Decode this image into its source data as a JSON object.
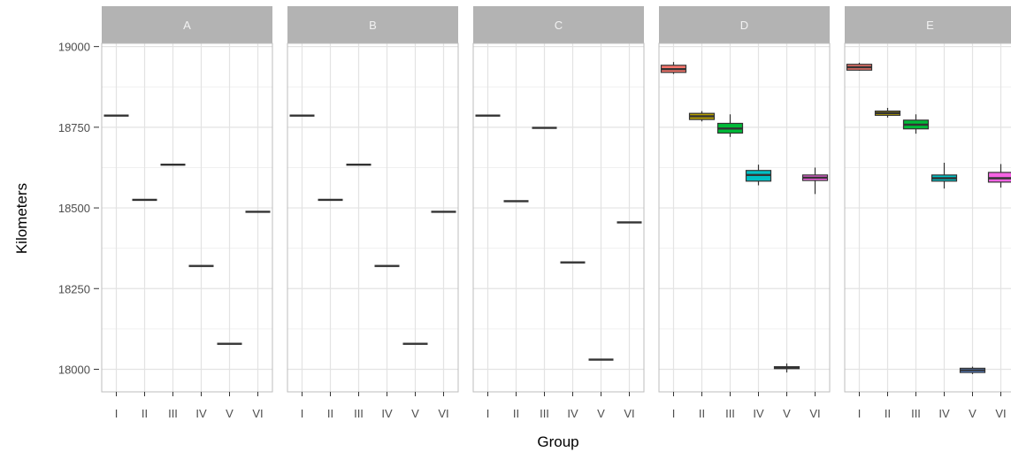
{
  "chart_data": {
    "type": "box",
    "facets": [
      "A",
      "B",
      "C",
      "D",
      "E"
    ],
    "categories": [
      "I",
      "II",
      "III",
      "IV",
      "V",
      "VI"
    ],
    "xlabel": "Group",
    "ylabel": "Kilometers",
    "ylim": [
      17930,
      19010
    ],
    "yticks": [
      18000,
      18250,
      18500,
      18750,
      19000
    ],
    "grid": true,
    "colors": {
      "I": "#F8766D",
      "II": "#B79F00",
      "III": "#00BA38",
      "IV": "#00BFC4",
      "V": "#619CFF",
      "VI": "#F564E3"
    },
    "panels": [
      {
        "facet": "A",
        "boxes": [
          {
            "group": "I",
            "min": 18786,
            "q1": 18786,
            "median": 18786,
            "q3": 18786,
            "max": 18786
          },
          {
            "group": "II",
            "min": 18525,
            "q1": 18525,
            "median": 18525,
            "q3": 18525,
            "max": 18525
          },
          {
            "group": "III",
            "min": 18634,
            "q1": 18634,
            "median": 18634,
            "q3": 18634,
            "max": 18634
          },
          {
            "group": "IV",
            "min": 18320,
            "q1": 18320,
            "median": 18320,
            "q3": 18320,
            "max": 18320
          },
          {
            "group": "V",
            "min": 18079,
            "q1": 18079,
            "median": 18079,
            "q3": 18079,
            "max": 18079
          },
          {
            "group": "VI",
            "min": 18488,
            "q1": 18488,
            "median": 18488,
            "q3": 18488,
            "max": 18488
          }
        ]
      },
      {
        "facet": "B",
        "boxes": [
          {
            "group": "I",
            "min": 18786,
            "q1": 18786,
            "median": 18786,
            "q3": 18786,
            "max": 18786
          },
          {
            "group": "II",
            "min": 18525,
            "q1": 18525,
            "median": 18525,
            "q3": 18525,
            "max": 18525
          },
          {
            "group": "III",
            "min": 18634,
            "q1": 18634,
            "median": 18634,
            "q3": 18634,
            "max": 18634
          },
          {
            "group": "IV",
            "min": 18320,
            "q1": 18320,
            "median": 18320,
            "q3": 18320,
            "max": 18320
          },
          {
            "group": "V",
            "min": 18079,
            "q1": 18079,
            "median": 18079,
            "q3": 18079,
            "max": 18079
          },
          {
            "group": "VI",
            "min": 18488,
            "q1": 18488,
            "median": 18488,
            "q3": 18488,
            "max": 18488
          }
        ]
      },
      {
        "facet": "C",
        "boxes": [
          {
            "group": "I",
            "min": 18786,
            "q1": 18786,
            "median": 18786,
            "q3": 18786,
            "max": 18786
          },
          {
            "group": "II",
            "min": 18521,
            "q1": 18521,
            "median": 18521,
            "q3": 18521,
            "max": 18521
          },
          {
            "group": "III",
            "min": 18748,
            "q1": 18748,
            "median": 18748,
            "q3": 18748,
            "max": 18748
          },
          {
            "group": "IV",
            "min": 18331,
            "q1": 18331,
            "median": 18331,
            "q3": 18331,
            "max": 18331
          },
          {
            "group": "V",
            "min": 18030,
            "q1": 18030,
            "median": 18030,
            "q3": 18030,
            "max": 18030
          },
          {
            "group": "VI",
            "min": 18455,
            "q1": 18455,
            "median": 18455,
            "q3": 18455,
            "max": 18455
          }
        ]
      },
      {
        "facet": "D",
        "boxes": [
          {
            "group": "I",
            "min": 18915,
            "q1": 18920,
            "median": 18930,
            "q3": 18942,
            "max": 18952
          },
          {
            "group": "II",
            "min": 18768,
            "q1": 18774,
            "median": 18784,
            "q3": 18793,
            "max": 18800
          },
          {
            "group": "III",
            "min": 18720,
            "q1": 18732,
            "median": 18746,
            "q3": 18762,
            "max": 18790
          },
          {
            "group": "IV",
            "min": 18570,
            "q1": 18583,
            "median": 18602,
            "q3": 18616,
            "max": 18634
          },
          {
            "group": "V",
            "min": 17990,
            "q1": 18002,
            "median": 18005,
            "q3": 18008,
            "max": 18018
          },
          {
            "group": "VI",
            "min": 18543,
            "q1": 18585,
            "median": 18594,
            "q3": 18602,
            "max": 18625
          }
        ]
      },
      {
        "facet": "E",
        "boxes": [
          {
            "group": "I",
            "min": 18925,
            "q1": 18927,
            "median": 18936,
            "q3": 18945,
            "max": 18950
          },
          {
            "group": "II",
            "min": 18780,
            "q1": 18787,
            "median": 18794,
            "q3": 18800,
            "max": 18810
          },
          {
            "group": "III",
            "min": 18730,
            "q1": 18745,
            "median": 18758,
            "q3": 18772,
            "max": 18790
          },
          {
            "group": "IV",
            "min": 18560,
            "q1": 18583,
            "median": 18592,
            "q3": 18602,
            "max": 18640
          },
          {
            "group": "V",
            "min": 17985,
            "q1": 17990,
            "median": 17997,
            "q3": 18003,
            "max": 18008
          },
          {
            "group": "VI",
            "min": 18563,
            "q1": 18580,
            "median": 18592,
            "q3": 18610,
            "max": 18636
          }
        ]
      }
    ]
  }
}
